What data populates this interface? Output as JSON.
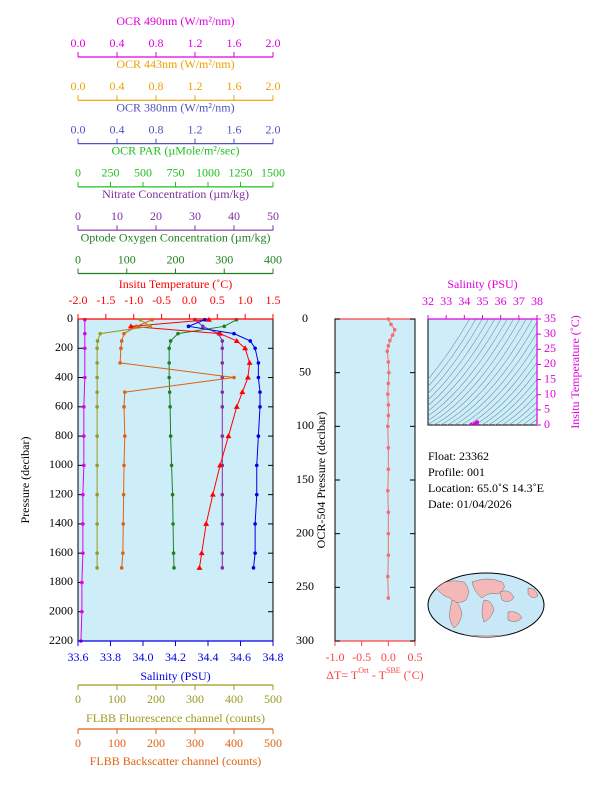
{
  "chart_data": [
    {
      "type": "profile",
      "ylabel": "Pressure (decibar)",
      "ylim": [
        2200,
        0
      ],
      "yticks": [
        0,
        200,
        400,
        600,
        800,
        1000,
        1200,
        1400,
        1600,
        1800,
        2000,
        2200
      ],
      "background": "#cdeef9",
      "axes": [
        {
          "label": "OCR 490nm (W/m²/nm)",
          "color": "#e000e0",
          "xlim": [
            0,
            2
          ],
          "xticks": [
            {
              "value": 0,
              "label": "0.0"
            },
            0.4,
            0.8,
            1.2,
            1.6,
            {
              "value": 2,
              "label": "2.0"
            }
          ],
          "pressure": [
            5,
            100,
            200,
            400,
            600,
            800,
            1000,
            1200,
            1400,
            1600,
            1800,
            2000,
            2200
          ],
          "values": [
            0.07,
            0.07,
            0.07,
            0.07,
            0.06,
            0.06,
            0.06,
            0.05,
            0.05,
            0.05,
            0.04,
            0.04,
            0.03
          ]
        },
        {
          "label": "OCR 443nm (W/m²/nm)",
          "color": "#f0a000",
          "xlim": [
            0,
            2
          ],
          "xticks": [
            {
              "value": 0,
              "label": "0.0"
            },
            0.4,
            0.8,
            1.2,
            1.6,
            {
              "value": 2,
              "label": "2.0"
            }
          ]
        },
        {
          "label": "OCR 380nm (W/m²/nm)",
          "color": "#5050c0",
          "xlim": [
            0,
            2
          ],
          "xticks": [
            {
              "value": 0,
              "label": "0.0"
            },
            0.4,
            0.8,
            1.2,
            1.6,
            {
              "value": 2,
              "label": "2.0"
            }
          ]
        },
        {
          "label": "OCR PAR (µMole/m²/sec)",
          "color": "#20c020",
          "xlim": [
            0,
            1500
          ],
          "xticks": [
            0,
            250,
            500,
            750,
            1000,
            1250,
            1500
          ]
        },
        {
          "label": "Nitrate Concentration (µm/kg)",
          "color": "#8030a0",
          "xlim": [
            0,
            50
          ],
          "xticks": [
            0,
            10,
            20,
            30,
            40,
            50
          ],
          "pressure": [
            5,
            50,
            100,
            150,
            200,
            300,
            400,
            500,
            600,
            800,
            1000,
            1200,
            1400,
            1600,
            1700
          ],
          "values": [
            30,
            32,
            36,
            37,
            37,
            37,
            37,
            37,
            37,
            37,
            37,
            37,
            37,
            37,
            37
          ]
        },
        {
          "label": "Optode Oxygen Concentration (µm/kg)",
          "color": "#208020",
          "xlim": [
            0,
            400
          ],
          "xticks": [
            0,
            100,
            200,
            300,
            400
          ],
          "pressure": [
            5,
            50,
            100,
            150,
            200,
            300,
            400,
            500,
            600,
            800,
            1000,
            1200,
            1400,
            1600,
            1700
          ],
          "values": [
            325,
            300,
            205,
            190,
            187,
            187,
            187,
            188,
            189,
            190,
            192,
            194,
            195,
            196,
            197
          ]
        },
        {
          "label": "Insitu Temperature (˚C)",
          "color": "#ff0000",
          "xlim": [
            -2,
            1.5
          ],
          "marker": "triangle",
          "xticks": [
            {
              "value": -2,
              "label": "-2.0"
            },
            -1.5,
            {
              "value": -1,
              "label": "-1.0"
            },
            -0.5,
            {
              "value": 0,
              "label": "0.0"
            },
            0.5,
            {
              "value": 1,
              "label": "1.0"
            },
            1.5
          ],
          "pressure": [
            5,
            50,
            100,
            150,
            200,
            300,
            400,
            500,
            600,
            800,
            1000,
            1200,
            1400,
            1600,
            1700
          ],
          "values": [
            0.35,
            -1.05,
            0.55,
            0.85,
            1.0,
            1.08,
            1.05,
            0.95,
            0.85,
            0.7,
            0.55,
            0.42,
            0.3,
            0.22,
            0.18
          ]
        },
        {
          "label": "Salinity (PSU)",
          "color": "#0000e0",
          "xlim": [
            33.6,
            34.8
          ],
          "xticks": [
            33.6,
            33.8,
            {
              "value": 34,
              "label": "34.0"
            },
            34.2,
            34.4,
            34.6,
            34.8
          ],
          "pressure": [
            5,
            50,
            100,
            150,
            200,
            300,
            400,
            500,
            600,
            800,
            1000,
            1200,
            1400,
            1600,
            1700
          ],
          "values": [
            34.38,
            34.28,
            34.56,
            34.66,
            34.69,
            34.71,
            34.71,
            34.72,
            34.72,
            34.71,
            34.7,
            34.7,
            34.69,
            34.69,
            34.68
          ]
        },
        {
          "label": "FLBB Fluorescence channel (counts)",
          "color": "#9a9a20",
          "xlim": [
            0,
            500
          ],
          "xticks": [
            0,
            100,
            200,
            300,
            400,
            500
          ],
          "pressure": [
            5,
            50,
            100,
            150,
            200,
            300,
            400,
            500,
            600,
            800,
            1000,
            1200,
            1400,
            1600,
            1700
          ],
          "values": [
            160,
            185,
            57,
            50,
            49,
            49,
            49,
            49,
            49,
            49,
            49,
            49,
            49,
            49,
            49
          ]
        },
        {
          "label": "FLBB Backscatter channel (counts)",
          "color": "#e06010",
          "xlim": [
            0,
            500
          ],
          "xticks": [
            0,
            100,
            200,
            300,
            400,
            500
          ],
          "pressure": [
            5,
            50,
            100,
            150,
            200,
            300,
            400,
            500,
            600,
            800,
            1000,
            1200,
            1400,
            1600,
            1700
          ],
          "values": [
            190,
            150,
            118,
            112,
            110,
            108,
            400,
            120,
            118,
            120,
            118,
            117,
            116,
            115,
            112
          ]
        }
      ]
    },
    {
      "type": "delta",
      "ylabel": "OCR-504 Pressure (decibar)",
      "xlabel": [
        "ΔT= T",
        "Ort",
        " - T",
        "SBE",
        " (˚C)"
      ],
      "color": "#f07070",
      "axis_color": "#ff4040",
      "background": "#cdeef9",
      "xlim": [
        -1,
        0.5
      ],
      "xticks": [
        {
          "value": -1,
          "label": "-1.0"
        },
        -0.5,
        {
          "value": 0,
          "label": "0.0"
        },
        0.5
      ],
      "ylim": [
        300,
        0
      ],
      "yticks": [
        0,
        50,
        100,
        150,
        200,
        250,
        300
      ],
      "pressure": [
        0,
        5,
        10,
        15,
        20,
        25,
        30,
        40,
        50,
        60,
        70,
        80,
        90,
        100,
        120,
        140,
        160,
        180,
        200,
        220,
        240,
        260
      ],
      "values": [
        0.0,
        0.05,
        0.12,
        0.08,
        0.03,
        0.0,
        -0.02,
        0.0,
        0.01,
        0.0,
        -0.01,
        0.0,
        0.0,
        -0.01,
        0.0,
        0.0,
        -0.01,
        0.0,
        0.0,
        0.0,
        -0.01,
        0.0
      ]
    },
    {
      "type": "ts",
      "xlabel": "Salinity (PSU)",
      "ylabel": "Insitu Temperature (˚C)",
      "color": "#e000e0",
      "background": "#cdeef9",
      "xlim": [
        32,
        38
      ],
      "xticks": [
        32,
        33,
        34,
        35,
        36,
        37,
        38
      ],
      "ylim": [
        0,
        35
      ],
      "yticks": [
        0,
        5,
        10,
        15,
        20,
        25,
        30,
        35
      ]
    }
  ],
  "info": {
    "lines": [
      "Float:  23362",
      "Profile:  001",
      "Location:  65.0˚S  14.3˚E",
      "Date:  01/04/2026"
    ]
  }
}
